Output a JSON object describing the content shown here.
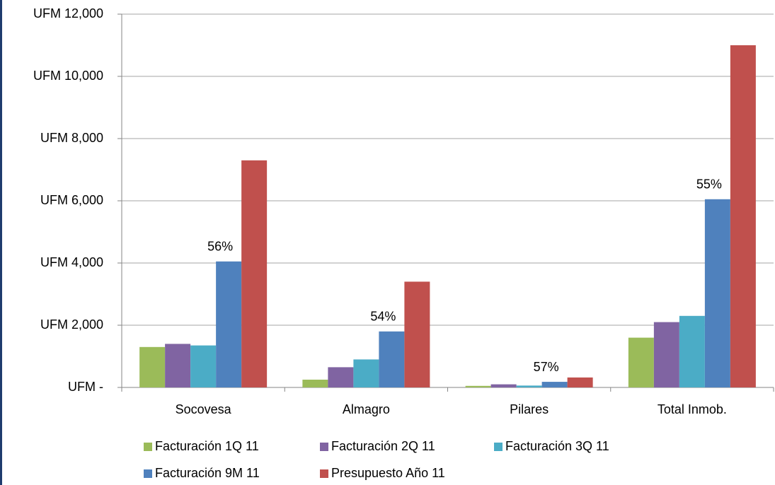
{
  "chart_data": {
    "type": "bar",
    "categories": [
      "Socovesa",
      "Almagro",
      "Pilares",
      "Total Inmob."
    ],
    "series": [
      {
        "name": "Facturación 1Q 11",
        "color": "#9bbb59",
        "values": [
          1300,
          250,
          50,
          1600
        ]
      },
      {
        "name": "Facturación 2Q 11",
        "color": "#8064a2",
        "values": [
          1400,
          650,
          100,
          2100
        ]
      },
      {
        "name": "Facturación 3Q 11",
        "color": "#4bacc6",
        "values": [
          1350,
          900,
          60,
          2300
        ]
      },
      {
        "name": "Facturación 9M 11",
        "color": "#4f81bd",
        "values": [
          4050,
          1800,
          180,
          6050
        ]
      },
      {
        "name": "Presupuesto Año 11",
        "color": "#c0504d",
        "values": [
          7300,
          3400,
          320,
          11000
        ]
      }
    ],
    "annotations": [
      "56%",
      "54%",
      "57%",
      "55%"
    ],
    "ylim": [
      0,
      12000
    ],
    "yticks": [
      {
        "value": 0,
        "label": "UFM -"
      },
      {
        "value": 2000,
        "label": "UFM 2,000"
      },
      {
        "value": 4000,
        "label": "UFM 4,000"
      },
      {
        "value": 6000,
        "label": "UFM 6,000"
      },
      {
        "value": 8000,
        "label": "UFM 8,000"
      },
      {
        "value": 10000,
        "label": "UFM 10,000"
      },
      {
        "value": 12000,
        "label": "UFM 12,000"
      }
    ],
    "grid": true,
    "legend": "bottom"
  }
}
